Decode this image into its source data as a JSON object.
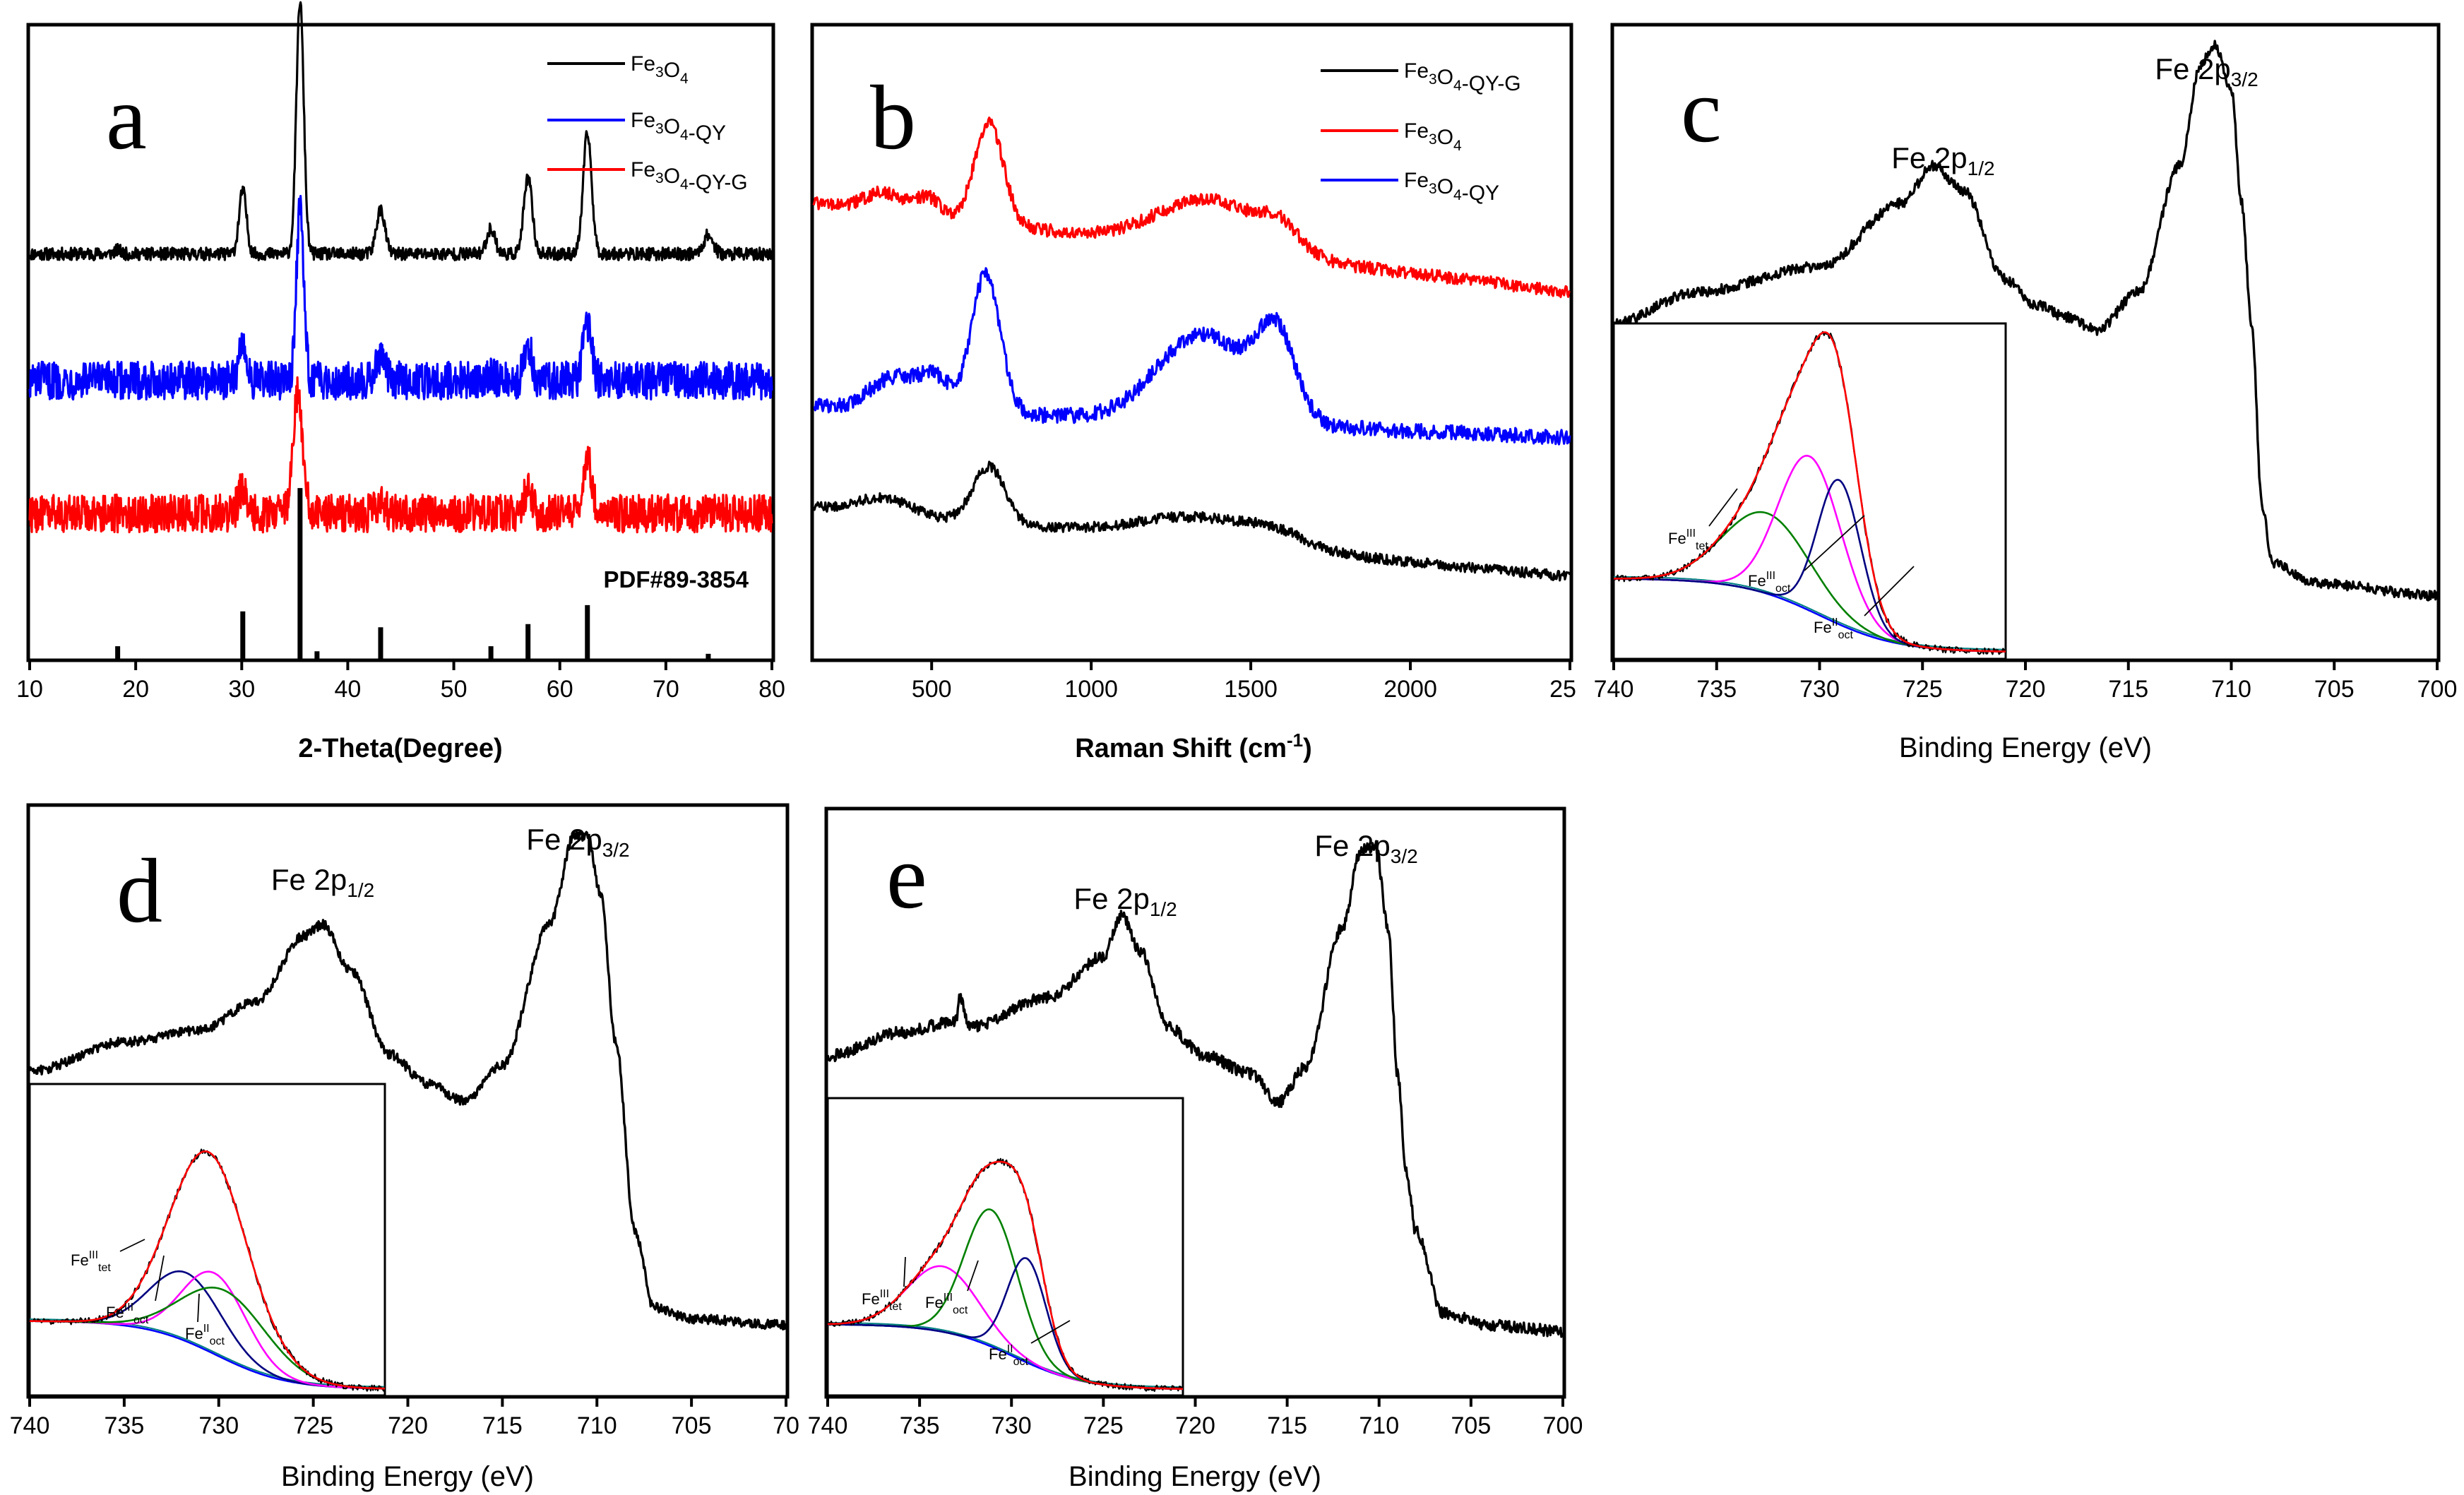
{
  "chart_data": [
    {
      "type": "line",
      "panel_letter": "a",
      "title": "",
      "xlabel": "2-Theta(Degree)",
      "ylabel": "",
      "xlim": [
        10,
        80
      ],
      "xticks": [
        "10",
        "20",
        "30",
        "40",
        "50",
        "60",
        "70",
        "80"
      ],
      "legend": [
        {
          "main": "Fe",
          "sub1": "3",
          "mid": "O",
          "sub2": "4",
          "tail": "",
          "color": "#000000"
        },
        {
          "main": "Fe",
          "sub1": "3",
          "mid": "O",
          "sub2": "4",
          "tail": "-QY",
          "color": "#0000ff"
        },
        {
          "main": "Fe",
          "sub1": "3",
          "mid": "O",
          "sub2": "4",
          "tail": "-QY-G",
          "color": "#ff0000"
        }
      ],
      "annotation": "PDF#89-3854",
      "series": [
        {
          "name": "Fe3O4",
          "color": "#000000",
          "baseline": 0.64,
          "noise": 0.01,
          "peaks": [
            [
              18.3,
              0.006,
              0.3
            ],
            [
              30.1,
              0.1,
              0.35
            ],
            [
              35.5,
              0.4,
              0.35
            ],
            [
              43.1,
              0.07,
              0.4
            ],
            [
              53.5,
              0.04,
              0.4
            ],
            [
              57.0,
              0.12,
              0.4
            ],
            [
              62.6,
              0.19,
              0.4
            ],
            [
              74.0,
              0.03,
              0.45
            ]
          ]
        },
        {
          "name": "Fe3O4-QY",
          "color": "#0000ff",
          "baseline": 0.44,
          "noise": 0.03,
          "peaks": [
            [
              30.1,
              0.06,
              0.35
            ],
            [
              35.5,
              0.27,
              0.35
            ],
            [
              43.1,
              0.04,
              0.4
            ],
            [
              53.5,
              0.01,
              0.4
            ],
            [
              57.0,
              0.05,
              0.4
            ],
            [
              62.6,
              0.09,
              0.4
            ]
          ]
        },
        {
          "name": "Fe3O4-QY-G",
          "color": "#ff0000",
          "baseline": 0.23,
          "noise": 0.03,
          "peaks": [
            [
              30.1,
              0.04,
              0.4
            ],
            [
              35.3,
              0.19,
              0.45
            ],
            [
              43.1,
              0.02,
              0.4
            ],
            [
              57.0,
              0.04,
              0.4
            ],
            [
              62.6,
              0.09,
              0.4
            ]
          ]
        }
      ],
      "reference_sticks": [
        [
          18.3,
          0.02
        ],
        [
          30.1,
          0.075
        ],
        [
          35.5,
          0.27
        ],
        [
          37.1,
          0.012
        ],
        [
          43.1,
          0.05
        ],
        [
          53.5,
          0.02
        ],
        [
          57.0,
          0.055
        ],
        [
          62.6,
          0.085
        ],
        [
          74.0,
          0.008
        ]
      ]
    },
    {
      "type": "line",
      "panel_letter": "b",
      "title": "",
      "xlabel": "Raman Shift (cm",
      "xlabel_sup": "-1",
      "xlabel_tail": ")",
      "ylabel": "",
      "xlim": [
        130,
        2500
      ],
      "xticks": [
        "500",
        "1000",
        "1500",
        "2000",
        "25"
      ],
      "legend": [
        {
          "main": "Fe",
          "sub1": "3",
          "mid": "O",
          "sub2": "4",
          "tail": "-QY-G",
          "color": "#000000"
        },
        {
          "main": "Fe",
          "sub1": "3",
          "mid": "O",
          "sub2": "4",
          "tail": "",
          "color": "#ff0000"
        },
        {
          "main": "Fe",
          "sub1": "3",
          "mid": "O",
          "sub2": "4",
          "tail": "-QY",
          "color": "#0000ff"
        }
      ],
      "series": [
        {
          "name": "Fe3O4",
          "color": "#ff0000",
          "baseline_start": 0.72,
          "baseline_end": 0.58,
          "noise": 0.01,
          "peaks": [
            [
              350,
              0.03,
              60
            ],
            [
              490,
              0.03,
              40
            ],
            [
              680,
              0.16,
              45
            ],
            [
              1370,
              0.08,
              160
            ],
            [
              1590,
              0.035,
              60
            ]
          ]
        },
        {
          "name": "Fe3O4-QY",
          "color": "#0000ff",
          "baseline_start": 0.4,
          "baseline_end": 0.35,
          "noise": 0.012,
          "peaks": [
            [
              380,
              0.05,
              70
            ],
            [
              510,
              0.05,
              50
            ],
            [
              670,
              0.22,
              45
            ],
            [
              1350,
              0.14,
              140
            ],
            [
              1580,
              0.13,
              60
            ]
          ]
        },
        {
          "name": "Fe3O4-QY-G",
          "color": "#000000",
          "baseline_start": 0.24,
          "baseline_end": 0.13,
          "noise": 0.008,
          "peaks": [
            [
              350,
              0.025,
              80
            ],
            [
              680,
              0.09,
              50
            ],
            [
              1350,
              0.04,
              200
            ],
            [
              1580,
              0.015,
              80
            ]
          ]
        }
      ]
    },
    {
      "type": "line",
      "panel_letter": "c",
      "title": "",
      "xlabel": "Binding Energy (eV)",
      "ylabel": "",
      "xlim": [
        740,
        700
      ],
      "xticks": [
        "740",
        "735",
        "730",
        "725",
        "720",
        "715",
        "710",
        "705",
        "700"
      ],
      "peak_labels": [
        {
          "text": "Fe 2p",
          "sub": "1/2",
          "x_ev": 724.0
        },
        {
          "text": "Fe 2p",
          "sub": "3/2",
          "x_ev": 711.2
        }
      ],
      "spectrum": {
        "color": "#000000",
        "noise": 0.008,
        "components": [
          [
            740,
            0.53
          ],
          [
            736,
            0.58
          ],
          [
            730,
            0.62
          ],
          [
            726,
            0.72
          ],
          [
            724.5,
            0.78
          ],
          [
            723,
            0.74
          ],
          [
            721,
            0.6
          ],
          [
            719.5,
            0.56
          ],
          [
            718,
            0.54
          ],
          [
            716.5,
            0.52
          ],
          [
            714.5,
            0.58
          ],
          [
            712.5,
            0.78
          ],
          [
            711.5,
            0.94
          ],
          [
            710.8,
            0.97
          ],
          [
            710,
            0.9
          ],
          [
            709.5,
            0.72
          ],
          [
            709,
            0.52
          ],
          [
            708.5,
            0.24
          ],
          [
            708,
            0.15
          ],
          [
            706,
            0.12
          ],
          [
            700,
            0.1
          ]
        ]
      },
      "inset": {
        "xlim": [
          740,
          720
        ],
        "envelope_color": "#ff0000",
        "components": [
          {
            "name": "Fe(III) tet",
            "color": "#008000",
            "center": 732.2,
            "height": 0.24,
            "width": 2.2
          },
          {
            "name": "Fe(III) oct",
            "color": "#ff00ff",
            "center": 730.0,
            "height": 0.46,
            "width": 1.6
          },
          {
            "name": "Fe(II) oct",
            "color": "#000080",
            "center": 728.5,
            "height": 0.43,
            "width": 1.1
          }
        ],
        "labels": [
          {
            "text": "Fe",
            "sup": "III",
            "sub": "tet"
          },
          {
            "text": "Fe",
            "sup": "III",
            "sub": "oct"
          },
          {
            "text": "Fe",
            "sup": "II",
            "sub": "oct"
          }
        ]
      }
    },
    {
      "type": "line",
      "panel_letter": "d",
      "title": "",
      "xlabel": "Binding Energy (eV)",
      "ylabel": "",
      "xlim": [
        740,
        700
      ],
      "xticks": [
        "740",
        "735",
        "730",
        "725",
        "720",
        "715",
        "710",
        "705",
        "70"
      ],
      "peak_labels": [
        {
          "text": "Fe 2p",
          "sub": "1/2",
          "x_ev": 724.5
        },
        {
          "text": "Fe 2p",
          "sub": "3/2",
          "x_ev": 711.0
        }
      ],
      "spectrum": {
        "color": "#000000",
        "noise": 0.008,
        "components": [
          [
            740,
            0.55
          ],
          [
            735,
            0.6
          ],
          [
            731,
            0.62
          ],
          [
            728,
            0.67
          ],
          [
            725.5,
            0.78
          ],
          [
            724.5,
            0.8
          ],
          [
            723,
            0.72
          ],
          [
            721,
            0.58
          ],
          [
            719,
            0.53
          ],
          [
            717,
            0.5
          ],
          [
            715,
            0.56
          ],
          [
            712.5,
            0.8
          ],
          [
            711.2,
            0.95
          ],
          [
            710.5,
            0.95
          ],
          [
            709.8,
            0.85
          ],
          [
            709,
            0.6
          ],
          [
            708,
            0.28
          ],
          [
            707,
            0.15
          ],
          [
            705,
            0.13
          ],
          [
            700,
            0.12
          ]
        ]
      },
      "inset": {
        "xlim": [
          740,
          720
        ],
        "envelope_color": "#ff0000",
        "components": [
          {
            "name": "Fe(III) tet",
            "color": "#000080",
            "center": 731.2,
            "height": 0.22,
            "width": 2.0
          },
          {
            "name": "Fe(III) oct",
            "color": "#ff00ff",
            "center": 729.6,
            "height": 0.26,
            "width": 1.8
          },
          {
            "name": "Fe(II) oct",
            "color": "#008000",
            "center": 729.0,
            "height": 0.22,
            "width": 2.4
          }
        ],
        "labels": [
          {
            "text": "Fe",
            "sup": "III",
            "sub": "tet"
          },
          {
            "text": "Fe",
            "sup": "III",
            "sub": "oct"
          },
          {
            "text": "Fe",
            "sup": "II",
            "sub": "oct"
          }
        ]
      }
    },
    {
      "type": "line",
      "panel_letter": "e",
      "title": "",
      "xlabel": "Binding Energy (eV)",
      "ylabel": "",
      "xlim": [
        740,
        700
      ],
      "xticks": [
        "740",
        "735",
        "730",
        "725",
        "720",
        "715",
        "710",
        "705",
        "700"
      ],
      "peak_labels": [
        {
          "text": "Fe 2p",
          "sub": "1/2",
          "x_ev": 723.8
        },
        {
          "text": "Fe 2p",
          "sub": "3/2",
          "x_ev": 710.7
        }
      ],
      "spectrum": {
        "color": "#000000",
        "noise": 0.01,
        "components": [
          [
            740,
            0.58
          ],
          [
            736,
            0.62
          ],
          [
            733,
            0.64
          ],
          [
            732.8,
            0.68
          ],
          [
            732.3,
            0.63
          ],
          [
            728,
            0.68
          ],
          [
            725,
            0.75
          ],
          [
            724,
            0.82
          ],
          [
            723,
            0.76
          ],
          [
            721.5,
            0.63
          ],
          [
            719.5,
            0.58
          ],
          [
            717,
            0.55
          ],
          [
            715.5,
            0.5
          ],
          [
            714,
            0.56
          ],
          [
            712,
            0.8
          ],
          [
            711,
            0.93
          ],
          [
            710.2,
            0.94
          ],
          [
            709.5,
            0.8
          ],
          [
            709,
            0.55
          ],
          [
            708.5,
            0.38
          ],
          [
            708,
            0.28
          ],
          [
            706.5,
            0.14
          ],
          [
            704,
            0.12
          ],
          [
            700,
            0.11
          ]
        ]
      },
      "inset": {
        "xlim": [
          740,
          720
        ],
        "envelope_color": "#ff0000",
        "components": [
          {
            "name": "Fe(III) tet",
            "color": "#ff00ff",
            "center": 733.5,
            "height": 0.22,
            "width": 2.0
          },
          {
            "name": "Fe(III) oct",
            "color": "#008000",
            "center": 730.8,
            "height": 0.46,
            "width": 1.5
          },
          {
            "name": "Fe(II) oct",
            "color": "#000080",
            "center": 728.8,
            "height": 0.35,
            "width": 1.1
          }
        ],
        "labels": [
          {
            "text": "Fe",
            "sup": "III",
            "sub": "tet"
          },
          {
            "text": "Fe",
            "sup": "III",
            "sub": "oct"
          },
          {
            "text": "Fe",
            "sup": "II",
            "sub": "oct"
          }
        ]
      }
    }
  ]
}
